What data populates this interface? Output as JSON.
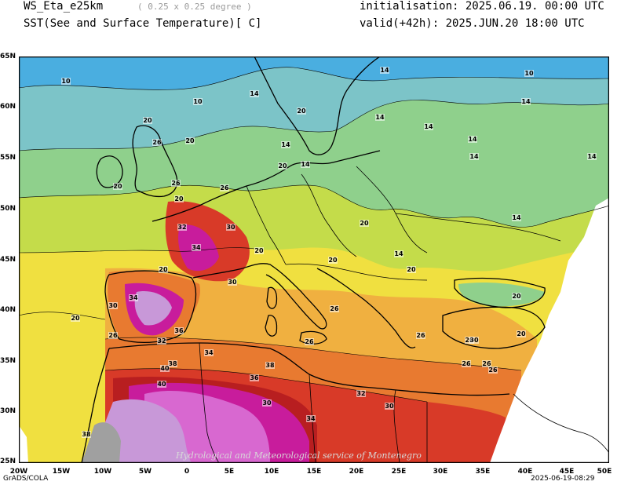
{
  "header": {
    "model": "WS_Eta_e25km",
    "resolution_note": "( 0.25 x 0.25 degree )",
    "field": "SST(See and Surface Temperature)[ C]",
    "initialisation": "initialisation: 2025.06.19. 00:00 UTC",
    "valid": "valid(+42h): 2025.JUN.20 18:00 UTC"
  },
  "footer": {
    "left": "GrADS/COLA",
    "right": "2025-06-19-08:29"
  },
  "map": {
    "lat_labels": [
      "65N",
      "60N",
      "55N",
      "50N",
      "45N",
      "40N",
      "35N",
      "30N",
      "25N"
    ],
    "lon_labels": [
      "20W",
      "15W",
      "10W",
      "5W",
      "0",
      "5E",
      "10E",
      "15E",
      "20E",
      "25E",
      "30E",
      "35E",
      "40E",
      "45E",
      "50E"
    ],
    "watermark": "Hydrological and Meteorological service of Montenegro",
    "contour_labels": [
      "10",
      "10",
      "10",
      "14",
      "14",
      "14",
      "14",
      "14",
      "14",
      "14",
      "14",
      "14",
      "14",
      "14",
      "14",
      "20",
      "20",
      "20",
      "20",
      "20",
      "20",
      "20",
      "20",
      "20",
      "20",
      "20",
      "20",
      "20",
      "20",
      "20",
      "26",
      "26",
      "26",
      "26",
      "26",
      "26",
      "26",
      "26",
      "26",
      "26",
      "30",
      "30",
      "30",
      "30",
      "30",
      "30",
      "32",
      "32",
      "32",
      "34",
      "34",
      "34",
      "34",
      "36",
      "36",
      "38",
      "38",
      "38",
      "40",
      "40"
    ],
    "colors": {
      "lt10": "#4aaee0",
      "c10_14": "#7cc4c8",
      "c14_18": "#8fd08c",
      "c18_20": "#c4dc4a",
      "c20_24": "#f0e040",
      "c24_26": "#f0b040",
      "c26_30": "#e87a30",
      "c30_32": "#d83a28",
      "c32_34": "#b81e20",
      "c34_36": "#c81c9c",
      "c36_38": "#d868d0",
      "c38_40": "#c898d8",
      "gt40": "#a0a0a0",
      "nodata": "#ffffff"
    }
  }
}
